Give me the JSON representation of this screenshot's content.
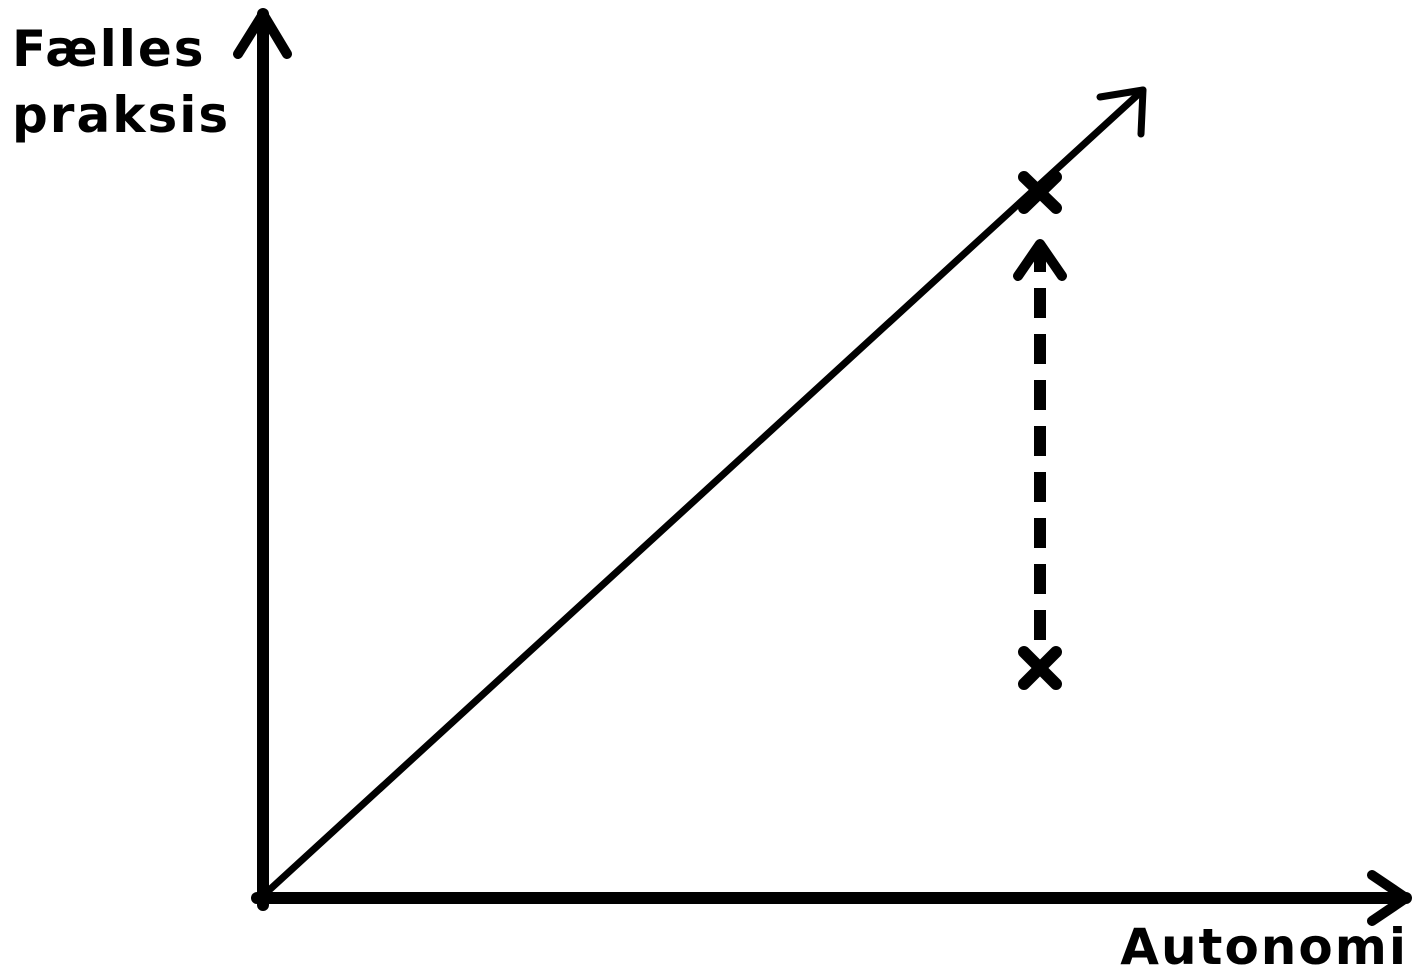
{
  "diagram": {
    "y_axis_label_line1": "Fælles",
    "y_axis_label_line2": "praksis",
    "x_axis_label": "Autonomi",
    "stroke_color": "#000000",
    "background_color": "#ffffff",
    "elements": [
      "vertical-axis-arrow",
      "horizontal-axis-arrow",
      "diagonal-arrow",
      "upper-x-marker",
      "lower-x-marker",
      "dashed-up-arrow"
    ]
  }
}
